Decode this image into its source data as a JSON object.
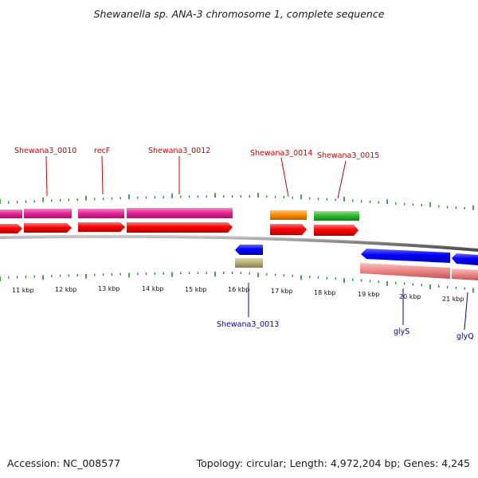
{
  "title": "Shewanella sp. ANA-3 chromosome 1, complete sequence",
  "footer": {
    "accession": "Accession: NC_008577",
    "topology": "Topology: circular; Length: 4,972,204 bp; Genes: 4,245"
  },
  "colors": {
    "background": "#ffffff",
    "tick": "#1f8a1f",
    "backbone": "#7a7a7a",
    "forward_label": "#cc0000",
    "reverse_label": "#0000aa",
    "cds_forward": "#ff0000",
    "cds_reverse": "#0000ff",
    "gene_magenta": "#e8279a",
    "gene_orange": "#ff8c00",
    "gene_green": "#33bb33",
    "gene_khaki": "#b8b37a",
    "gene_salmon": "#f08a8a"
  },
  "tick_labels": [
    "11 kbp",
    "12 kbp",
    "13 kbp",
    "14 kbp",
    "15 kbp",
    "16 kbp",
    "17 kbp",
    "18 kbp",
    "19 kbp",
    "20 kbp",
    "21 kbp"
  ],
  "forward_gene_labels": [
    "Shewana3_0010",
    "recF",
    "Shewana3_0012",
    "Shewana3_0014",
    "Shewana3_0015"
  ],
  "reverse_gene_labels": [
    "Shewana3_0013",
    "glyS",
    "glyQ"
  ]
}
